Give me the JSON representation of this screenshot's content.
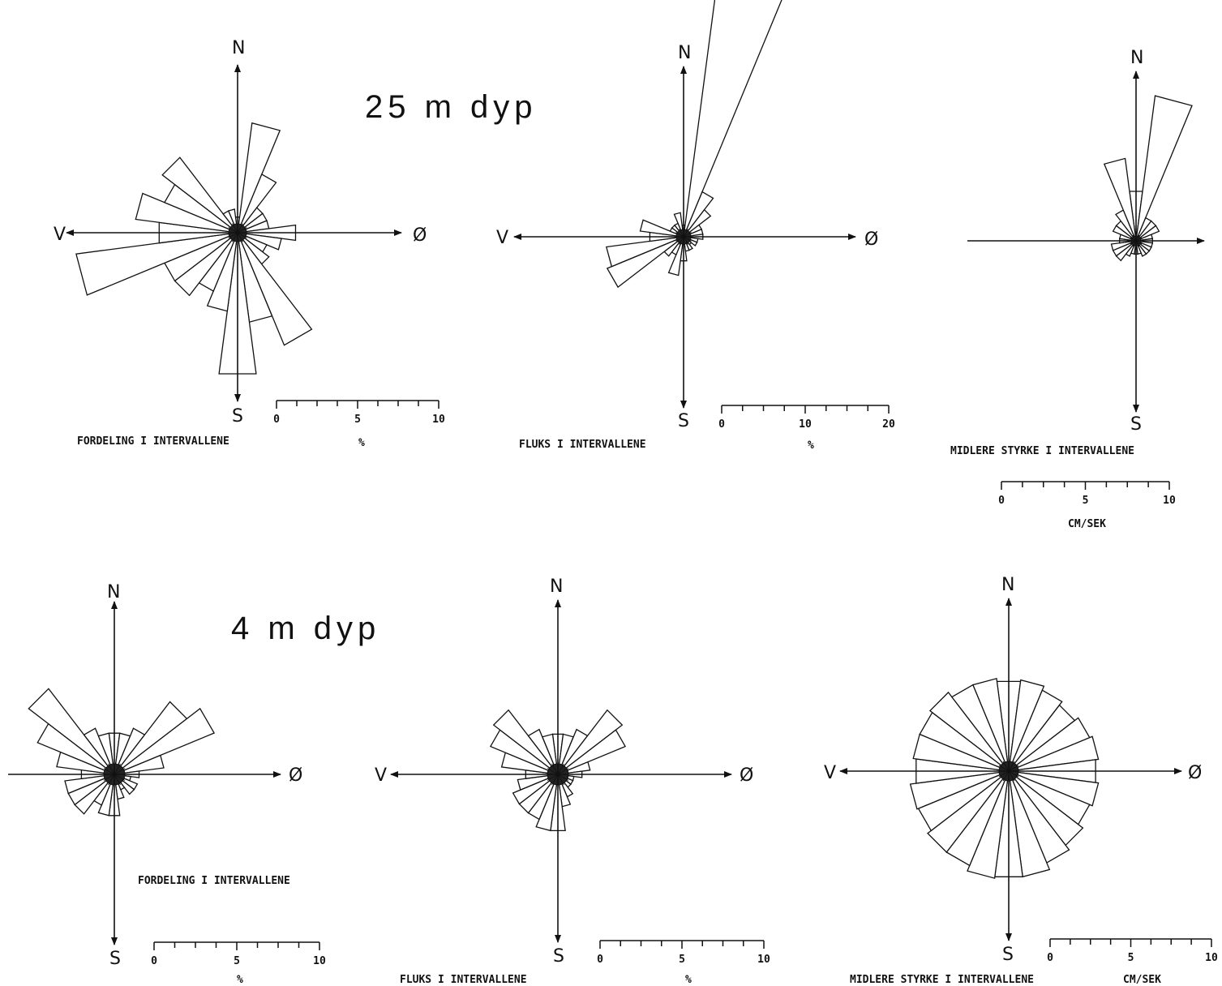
{
  "headings": [
    "25 m dyp",
    "4 m dyp"
  ],
  "chart_data": [
    {
      "id": "p25a",
      "type": "polar-bar",
      "title": "",
      "caption": "FORDELING I INTERVALLENE",
      "unit": "%",
      "scale_ticks": [
        "0",
        "5",
        "10"
      ],
      "scale_max": 10,
      "compass": {
        "N": "N",
        "S": "S",
        "E": "Ø",
        "W": "V"
      },
      "bins": [
        {
          "dir": 0,
          "value": 1
        },
        {
          "dir": 15,
          "value": 7.0
        },
        {
          "dir": 30,
          "value": 4.0
        },
        {
          "dir": 45,
          "value": 2.0
        },
        {
          "dir": 60,
          "value": 2.0
        },
        {
          "dir": 75,
          "value": 2.0
        },
        {
          "dir": 90,
          "value": 3.7
        },
        {
          "dir": 105,
          "value": 2.8
        },
        {
          "dir": 120,
          "value": 2.0
        },
        {
          "dir": 135,
          "value": 2.5
        },
        {
          "dir": 150,
          "value": 7.7
        },
        {
          "dir": 165,
          "value": 5.7
        },
        {
          "dir": 180,
          "value": 9.0
        },
        {
          "dir": 195,
          "value": 5.0
        },
        {
          "dir": 210,
          "value": 4.0
        },
        {
          "dir": 225,
          "value": 5.0
        },
        {
          "dir": 240,
          "value": 5.0
        },
        {
          "dir": 255,
          "value": 10.3
        },
        {
          "dir": 270,
          "value": 5.0
        },
        {
          "dir": 285,
          "value": 6.5
        },
        {
          "dir": 300,
          "value": 5.0
        },
        {
          "dir": 315,
          "value": 6.0
        },
        {
          "dir": 330,
          "value": 1.5
        },
        {
          "dir": 345,
          "value": 1.5
        }
      ]
    },
    {
      "id": "p25b",
      "type": "polar-bar",
      "title": "",
      "caption": "FLUKS I INTERVALLENE",
      "unit": "%",
      "scale_ticks": [
        "0",
        "10",
        "20"
      ],
      "scale_max": 20,
      "compass": {
        "N": "N",
        "S": "S",
        "E": "Ø",
        "W": "V"
      },
      "bins": [
        {
          "dir": 0,
          "value": 1.2
        },
        {
          "dir": 15,
          "value": 26.5
        },
        {
          "dir": 30,
          "value": 5.0
        },
        {
          "dir": 45,
          "value": 3.5
        },
        {
          "dir": 60,
          "value": 2.0
        },
        {
          "dir": 75,
          "value": 2.0
        },
        {
          "dir": 90,
          "value": 2.0
        },
        {
          "dir": 105,
          "value": 1.5
        },
        {
          "dir": 120,
          "value": 1.5
        },
        {
          "dir": 135,
          "value": 1.0
        },
        {
          "dir": 150,
          "value": 1.5
        },
        {
          "dir": 165,
          "value": 1.5
        },
        {
          "dir": 180,
          "value": 2.5
        },
        {
          "dir": 195,
          "value": 4.0
        },
        {
          "dir": 210,
          "value": 2.0
        },
        {
          "dir": 225,
          "value": 2.5
        },
        {
          "dir": 240,
          "value": 8.5
        },
        {
          "dir": 255,
          "value": 8.0
        },
        {
          "dir": 270,
          "value": 3.5
        },
        {
          "dir": 285,
          "value": 4.5
        },
        {
          "dir": 300,
          "value": 1.5
        },
        {
          "dir": 315,
          "value": 1.5
        },
        {
          "dir": 330,
          "value": 1.5
        },
        {
          "dir": 345,
          "value": 2.5
        }
      ]
    },
    {
      "id": "p25c",
      "type": "polar-bar",
      "title": "",
      "caption": "MIDLERE STYRKE I INTERVALLENE",
      "unit": "CM/SEK",
      "scale_ticks": [
        "0",
        "5",
        "10"
      ],
      "scale_max": 10,
      "compass": {
        "N": "N",
        "S": "S",
        "E": "Ø",
        "W": ""
      },
      "bins": [
        {
          "dir": 0,
          "value": 3.0
        },
        {
          "dir": 15,
          "value": 8.8
        },
        {
          "dir": 30,
          "value": 1.5
        },
        {
          "dir": 45,
          "value": 1.5
        },
        {
          "dir": 60,
          "value": 1.5
        },
        {
          "dir": 75,
          "value": 1.0
        },
        {
          "dir": 90,
          "value": 1.0
        },
        {
          "dir": 105,
          "value": 1.0
        },
        {
          "dir": 120,
          "value": 1.0
        },
        {
          "dir": 135,
          "value": 1.0
        },
        {
          "dir": 150,
          "value": 1.0
        },
        {
          "dir": 165,
          "value": 0.8
        },
        {
          "dir": 180,
          "value": 0.8
        },
        {
          "dir": 195,
          "value": 0.8
        },
        {
          "dir": 210,
          "value": 1.0
        },
        {
          "dir": 225,
          "value": 1.5
        },
        {
          "dir": 240,
          "value": 1.5
        },
        {
          "dir": 255,
          "value": 1.5
        },
        {
          "dir": 270,
          "value": 1.0
        },
        {
          "dir": 285,
          "value": 1.0
        },
        {
          "dir": 300,
          "value": 1.5
        },
        {
          "dir": 315,
          "value": 1.5
        },
        {
          "dir": 330,
          "value": 2.0
        },
        {
          "dir": 345,
          "value": 5.0
        }
      ]
    },
    {
      "id": "p4a",
      "type": "polar-bar",
      "title": "",
      "caption": "FORDELING I INTERVALLENE",
      "unit": "%",
      "scale_ticks": [
        "0",
        "5",
        "10"
      ],
      "scale_max": 10,
      "compass": {
        "N": "N",
        "S": "S",
        "E": "Ø",
        "W": ""
      },
      "bins": [
        {
          "dir": 0,
          "value": 2.5
        },
        {
          "dir": 15,
          "value": 2.5
        },
        {
          "dir": 30,
          "value": 3.0
        },
        {
          "dir": 45,
          "value": 5.5
        },
        {
          "dir": 60,
          "value": 6.5
        },
        {
          "dir": 75,
          "value": 3.0
        },
        {
          "dir": 90,
          "value": 1.5
        },
        {
          "dir": 105,
          "value": 1.0
        },
        {
          "dir": 120,
          "value": 1.5
        },
        {
          "dir": 135,
          "value": 1.5
        },
        {
          "dir": 150,
          "value": 1.0
        },
        {
          "dir": 165,
          "value": 1.5
        },
        {
          "dir": 180,
          "value": 2.5
        },
        {
          "dir": 195,
          "value": 2.5
        },
        {
          "dir": 210,
          "value": 2.0
        },
        {
          "dir": 225,
          "value": 3.0
        },
        {
          "dir": 240,
          "value": 3.0
        },
        {
          "dir": 255,
          "value": 3.0
        },
        {
          "dir": 270,
          "value": 2.0
        },
        {
          "dir": 285,
          "value": 3.5
        },
        {
          "dir": 300,
          "value": 5.0
        },
        {
          "dir": 315,
          "value": 6.5
        },
        {
          "dir": 330,
          "value": 3.0
        },
        {
          "dir": 345,
          "value": 2.5
        }
      ]
    },
    {
      "id": "p4b",
      "type": "polar-bar",
      "title": "",
      "caption": "FLUKS I INTERVALLENE",
      "unit": "%",
      "scale_ticks": [
        "0",
        "5",
        "10"
      ],
      "scale_max": 10,
      "compass": {
        "N": "N",
        "S": "S",
        "E": "Ø",
        "W": "V"
      },
      "bins": [
        {
          "dir": 0,
          "value": 2.5
        },
        {
          "dir": 15,
          "value": 2.5
        },
        {
          "dir": 30,
          "value": 3.0
        },
        {
          "dir": 45,
          "value": 5.0
        },
        {
          "dir": 60,
          "value": 4.5
        },
        {
          "dir": 75,
          "value": 2.0
        },
        {
          "dir": 90,
          "value": 1.5
        },
        {
          "dir": 105,
          "value": 1.0
        },
        {
          "dir": 120,
          "value": 1.0
        },
        {
          "dir": 135,
          "value": 1.0
        },
        {
          "dir": 150,
          "value": 1.5
        },
        {
          "dir": 165,
          "value": 2.0
        },
        {
          "dir": 180,
          "value": 3.5
        },
        {
          "dir": 195,
          "value": 3.5
        },
        {
          "dir": 210,
          "value": 3.0
        },
        {
          "dir": 225,
          "value": 3.0
        },
        {
          "dir": 240,
          "value": 3.0
        },
        {
          "dir": 255,
          "value": 2.5
        },
        {
          "dir": 270,
          "value": 2.0
        },
        {
          "dir": 285,
          "value": 3.5
        },
        {
          "dir": 300,
          "value": 4.5
        },
        {
          "dir": 315,
          "value": 5.0
        },
        {
          "dir": 330,
          "value": 3.0
        },
        {
          "dir": 345,
          "value": 2.5
        }
      ]
    },
    {
      "id": "p4c",
      "type": "polar-bar",
      "title": "",
      "caption": "MIDLERE STYRKE I INTERVALLENE",
      "unit": "CM/SEK",
      "scale_ticks": [
        "0",
        "5",
        "10"
      ],
      "scale_max": 10,
      "compass": {
        "N": "N",
        "S": "S",
        "E": "Ø",
        "W": "V"
      },
      "bins": [
        {
          "dir": 0,
          "value": 6.2
        },
        {
          "dir": 15,
          "value": 6.3
        },
        {
          "dir": 30,
          "value": 6.0
        },
        {
          "dir": 45,
          "value": 5.7
        },
        {
          "dir": 60,
          "value": 6.0
        },
        {
          "dir": 75,
          "value": 6.2
        },
        {
          "dir": 90,
          "value": 6.0
        },
        {
          "dir": 105,
          "value": 6.2
        },
        {
          "dir": 120,
          "value": 6.0
        },
        {
          "dir": 135,
          "value": 6.4
        },
        {
          "dir": 150,
          "value": 6.8
        },
        {
          "dir": 165,
          "value": 7.3
        },
        {
          "dir": 180,
          "value": 7.3
        },
        {
          "dir": 195,
          "value": 7.4
        },
        {
          "dir": 210,
          "value": 7.0
        },
        {
          "dir": 225,
          "value": 7.0
        },
        {
          "dir": 240,
          "value": 6.7
        },
        {
          "dir": 255,
          "value": 6.8
        },
        {
          "dir": 270,
          "value": 6.4
        },
        {
          "dir": 285,
          "value": 6.6
        },
        {
          "dir": 300,
          "value": 6.6
        },
        {
          "dir": 315,
          "value": 6.8
        },
        {
          "dir": 330,
          "value": 6.4
        },
        {
          "dir": 345,
          "value": 6.4
        }
      ]
    }
  ]
}
